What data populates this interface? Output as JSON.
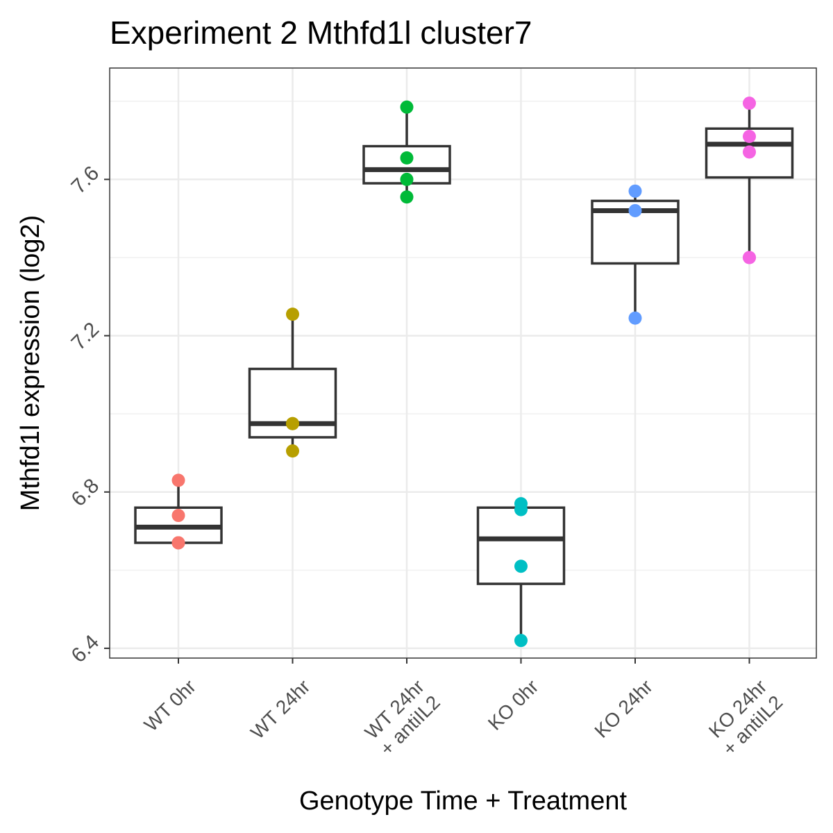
{
  "chart_data": {
    "type": "box",
    "title": "Experiment 2 Mthfd1l cluster7",
    "xlabel": "Genotype Time + Treatment",
    "ylabel": "Mthfd1l expression (log2)",
    "ylim": [
      6.375,
      7.885
    ],
    "yticks": [
      6.4,
      6.8,
      7.2,
      7.6
    ],
    "ytick_labels": [
      "6.4",
      "6.8",
      "7.2",
      "7.6"
    ],
    "grid": true,
    "categories": [
      {
        "lines": [
          "WT 0hr"
        ]
      },
      {
        "lines": [
          "WT 24hr"
        ]
      },
      {
        "lines": [
          "WT 24hr",
          "+ antiIL2"
        ]
      },
      {
        "lines": [
          "KO 0hr"
        ]
      },
      {
        "lines": [
          "KO 24hr"
        ]
      },
      {
        "lines": [
          "KO 24hr",
          "+ antiIL2"
        ]
      }
    ],
    "boxes": [
      {
        "q1": 6.67,
        "median": 6.71,
        "q3": 6.76,
        "whisker_low": 6.67,
        "whisker_high": 6.83,
        "color": "#F8766D",
        "points": [
          6.83,
          6.74,
          6.67,
          6.67
        ]
      },
      {
        "q1": 6.94,
        "median": 6.975,
        "q3": 7.115,
        "whisker_low": 6.91,
        "whisker_high": 7.255,
        "color": "#B79F00",
        "points": [
          7.255,
          6.975,
          6.975,
          6.905
        ]
      },
      {
        "q1": 7.59,
        "median": 7.625,
        "q3": 7.685,
        "whisker_low": 7.555,
        "whisker_high": 7.785,
        "color": "#00BA38",
        "points": [
          7.785,
          7.655,
          7.6,
          7.555
        ]
      },
      {
        "q1": 6.565,
        "median": 6.68,
        "q3": 6.76,
        "whisker_low": 6.42,
        "whisker_high": 6.77,
        "color": "#00BFC4",
        "points": [
          6.77,
          6.755,
          6.61,
          6.42
        ]
      },
      {
        "q1": 7.385,
        "median": 7.52,
        "q3": 7.545,
        "whisker_low": 7.245,
        "whisker_high": 7.57,
        "color": "#619CFF",
        "points": [
          7.57,
          7.52,
          7.245
        ]
      },
      {
        "q1": 7.605,
        "median": 7.69,
        "q3": 7.73,
        "whisker_low": 7.4,
        "whisker_high": 7.795,
        "color": "#F564E3",
        "points": [
          7.795,
          7.71,
          7.67,
          7.4,
          7.4
        ]
      }
    ]
  }
}
